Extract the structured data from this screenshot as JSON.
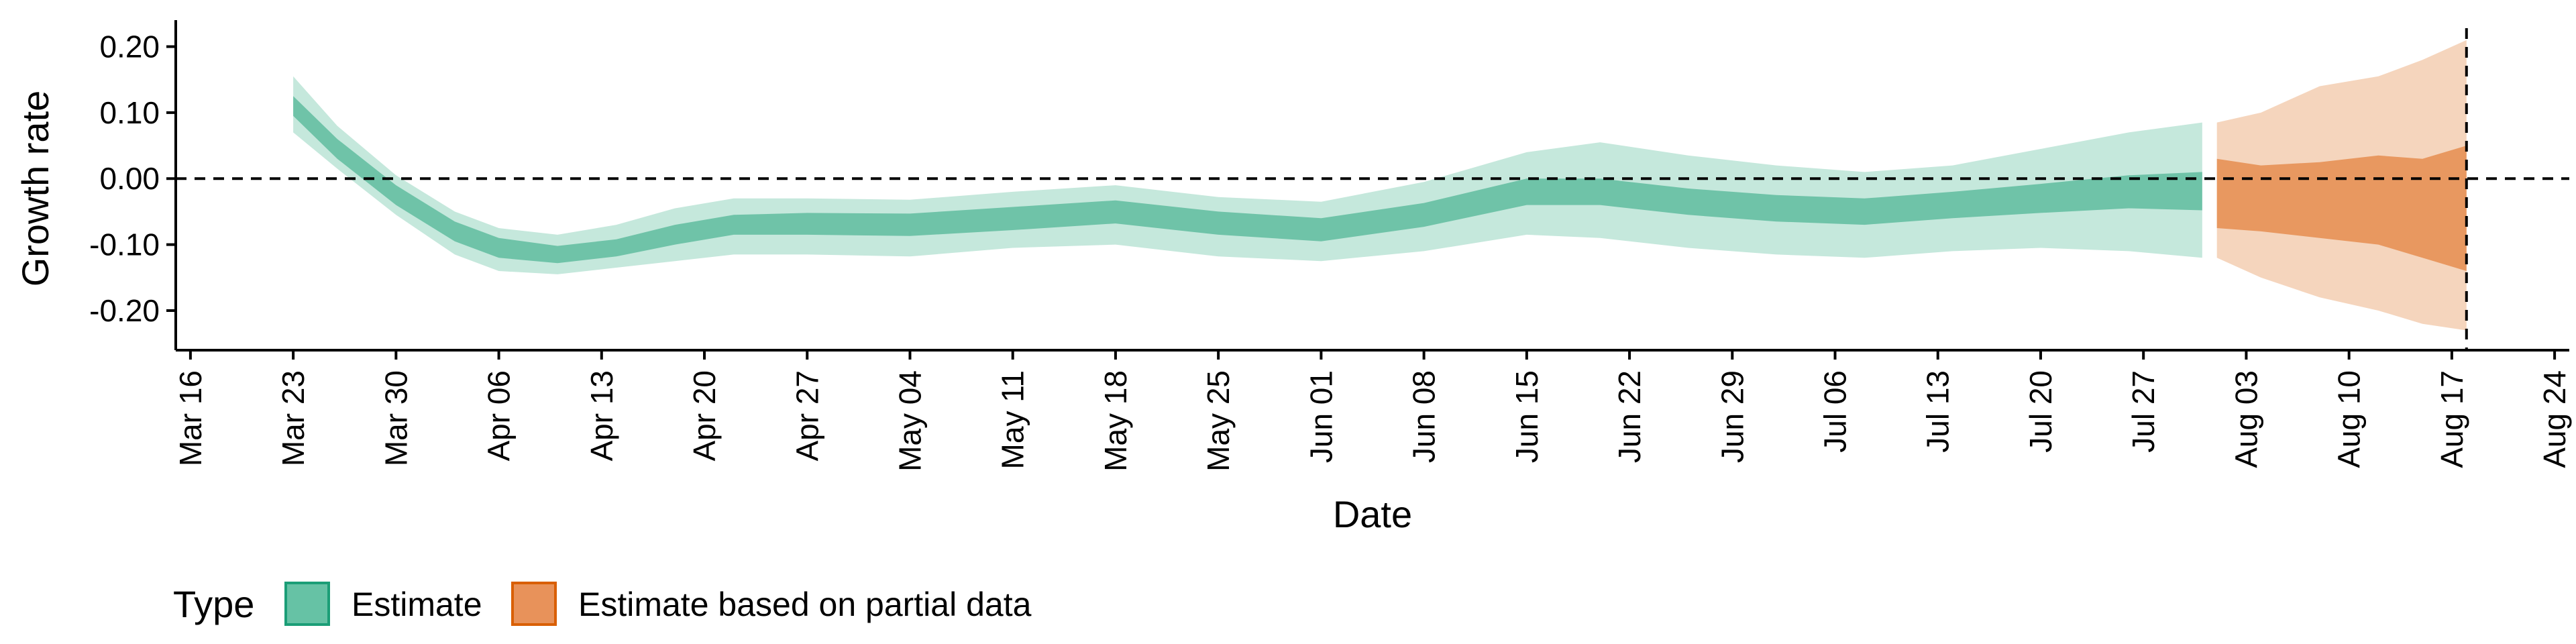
{
  "chart_data": {
    "type": "area",
    "xlabel": "Date",
    "ylabel": "Growth rate",
    "xlim": [
      "2020-03-15",
      "2020-08-25"
    ],
    "ylim": [
      -0.26,
      0.23
    ],
    "y_ticks": [
      0.2,
      0.1,
      0.0,
      -0.1,
      -0.2
    ],
    "y_tick_labels": [
      "0.20",
      "0.10",
      "0.00",
      "-0.10",
      "-0.20"
    ],
    "x_ticks": [
      "2020-03-16",
      "2020-03-23",
      "2020-03-30",
      "2020-04-06",
      "2020-04-13",
      "2020-04-20",
      "2020-04-27",
      "2020-05-04",
      "2020-05-11",
      "2020-05-18",
      "2020-05-25",
      "2020-06-01",
      "2020-06-08",
      "2020-06-15",
      "2020-06-22",
      "2020-06-29",
      "2020-07-06",
      "2020-07-13",
      "2020-07-20",
      "2020-07-27",
      "2020-08-03",
      "2020-08-10",
      "2020-08-17",
      "2020-08-24"
    ],
    "x_tick_labels": [
      "Mar 16",
      "Mar 23",
      "Mar 30",
      "Apr 06",
      "Apr 13",
      "Apr 20",
      "Apr 27",
      "May 04",
      "May 11",
      "May 18",
      "May 25",
      "Jun 01",
      "Jun 08",
      "Jun 15",
      "Jun 22",
      "Jun 29",
      "Jul 06",
      "Jul 13",
      "Jul 20",
      "Jul 27",
      "Aug 03",
      "Aug 10",
      "Aug 17",
      "Aug 24"
    ],
    "hline": 0.0,
    "vline": "2020-08-18",
    "grid": false,
    "legend": {
      "title": "Type",
      "position": "bottom-left",
      "entries": [
        {
          "label": "Estimate",
          "color": "#66c2a5",
          "border": "#1b9e77"
        },
        {
          "label": "Estimate based on partial data",
          "color": "#e8925a",
          "border": "#d95f02"
        }
      ]
    },
    "series": [
      {
        "name": "Estimate",
        "color_outer": "#c5e8dc",
        "color_inner": "#6fc3a8",
        "points": [
          {
            "date": "2020-03-23",
            "median": 0.11,
            "lower90": 0.07,
            "upper90": 0.155,
            "lower50": 0.095,
            "upper50": 0.125
          },
          {
            "date": "2020-03-26",
            "median": 0.045,
            "lower90": 0.015,
            "upper90": 0.08,
            "lower50": 0.03,
            "upper50": 0.06
          },
          {
            "date": "2020-03-30",
            "median": -0.025,
            "lower90": -0.055,
            "upper90": 0.005,
            "lower50": -0.04,
            "upper50": -0.01
          },
          {
            "date": "2020-04-03",
            "median": -0.08,
            "lower90": -0.115,
            "upper90": -0.05,
            "lower50": -0.095,
            "upper50": -0.065
          },
          {
            "date": "2020-04-06",
            "median": -0.105,
            "lower90": -0.14,
            "upper90": -0.075,
            "lower50": -0.12,
            "upper50": -0.09
          },
          {
            "date": "2020-04-10",
            "median": -0.115,
            "lower90": -0.145,
            "upper90": -0.085,
            "lower50": -0.128,
            "upper50": -0.102
          },
          {
            "date": "2020-04-14",
            "median": -0.105,
            "lower90": -0.135,
            "upper90": -0.07,
            "lower50": -0.118,
            "upper50": -0.092
          },
          {
            "date": "2020-04-18",
            "median": -0.085,
            "lower90": -0.125,
            "upper90": -0.045,
            "lower50": -0.1,
            "upper50": -0.07
          },
          {
            "date": "2020-04-22",
            "median": -0.07,
            "lower90": -0.115,
            "upper90": -0.03,
            "lower50": -0.085,
            "upper50": -0.055
          },
          {
            "date": "2020-04-27",
            "median": -0.068,
            "lower90": -0.115,
            "upper90": -0.03,
            "lower50": -0.085,
            "upper50": -0.052
          },
          {
            "date": "2020-05-04",
            "median": -0.07,
            "lower90": -0.118,
            "upper90": -0.032,
            "lower50": -0.087,
            "upper50": -0.053
          },
          {
            "date": "2020-05-11",
            "median": -0.06,
            "lower90": -0.105,
            "upper90": -0.02,
            "lower50": -0.078,
            "upper50": -0.043
          },
          {
            "date": "2020-05-18",
            "median": -0.05,
            "lower90": -0.1,
            "upper90": -0.01,
            "lower50": -0.068,
            "upper50": -0.033
          },
          {
            "date": "2020-05-25",
            "median": -0.068,
            "lower90": -0.118,
            "upper90": -0.028,
            "lower50": -0.085,
            "upper50": -0.05
          },
          {
            "date": "2020-06-01",
            "median": -0.078,
            "lower90": -0.125,
            "upper90": -0.035,
            "lower50": -0.095,
            "upper50": -0.06
          },
          {
            "date": "2020-06-08",
            "median": -0.055,
            "lower90": -0.11,
            "upper90": -0.005,
            "lower50": -0.073,
            "upper50": -0.037
          },
          {
            "date": "2020-06-15",
            "median": -0.02,
            "lower90": -0.085,
            "upper90": 0.04,
            "lower50": -0.04,
            "upper50": 0.0
          },
          {
            "date": "2020-06-20",
            "median": -0.02,
            "lower90": -0.09,
            "upper90": 0.055,
            "lower50": -0.04,
            "upper50": 0.0
          },
          {
            "date": "2020-06-26",
            "median": -0.035,
            "lower90": -0.105,
            "upper90": 0.035,
            "lower50": -0.055,
            "upper50": -0.015
          },
          {
            "date": "2020-07-02",
            "median": -0.045,
            "lower90": -0.115,
            "upper90": 0.02,
            "lower50": -0.065,
            "upper50": -0.025
          },
          {
            "date": "2020-07-08",
            "median": -0.05,
            "lower90": -0.12,
            "upper90": 0.01,
            "lower50": -0.07,
            "upper50": -0.03
          },
          {
            "date": "2020-07-14",
            "median": -0.04,
            "lower90": -0.11,
            "upper90": 0.02,
            "lower50": -0.06,
            "upper50": -0.02
          },
          {
            "date": "2020-07-20",
            "median": -0.03,
            "lower90": -0.105,
            "upper90": 0.045,
            "lower50": -0.052,
            "upper50": -0.008
          },
          {
            "date": "2020-07-26",
            "median": -0.02,
            "lower90": -0.11,
            "upper90": 0.07,
            "lower50": -0.045,
            "upper50": 0.005
          },
          {
            "date": "2020-07-31",
            "median": -0.02,
            "lower90": -0.12,
            "upper90": 0.085,
            "lower50": -0.048,
            "upper50": 0.01
          }
        ]
      },
      {
        "name": "Estimate based on partial data",
        "color_outer": "#f5d5bd",
        "color_inner": "#e89860",
        "points": [
          {
            "date": "2020-08-01",
            "median": -0.035,
            "lower90": -0.12,
            "upper90": 0.085,
            "lower50": -0.075,
            "upper50": 0.03
          },
          {
            "date": "2020-08-04",
            "median": -0.04,
            "lower90": -0.15,
            "upper90": 0.1,
            "lower50": -0.08,
            "upper50": 0.02
          },
          {
            "date": "2020-08-08",
            "median": -0.05,
            "lower90": -0.18,
            "upper90": 0.14,
            "lower50": -0.09,
            "upper50": 0.025
          },
          {
            "date": "2020-08-12",
            "median": -0.055,
            "lower90": -0.2,
            "upper90": 0.155,
            "lower50": -0.1,
            "upper50": 0.035
          },
          {
            "date": "2020-08-15",
            "median": -0.06,
            "lower90": -0.22,
            "upper90": 0.18,
            "lower50": -0.12,
            "upper50": 0.03
          },
          {
            "date": "2020-08-18",
            "median": -0.06,
            "lower90": -0.23,
            "upper90": 0.21,
            "lower50": -0.14,
            "upper50": 0.05
          }
        ]
      }
    ]
  }
}
